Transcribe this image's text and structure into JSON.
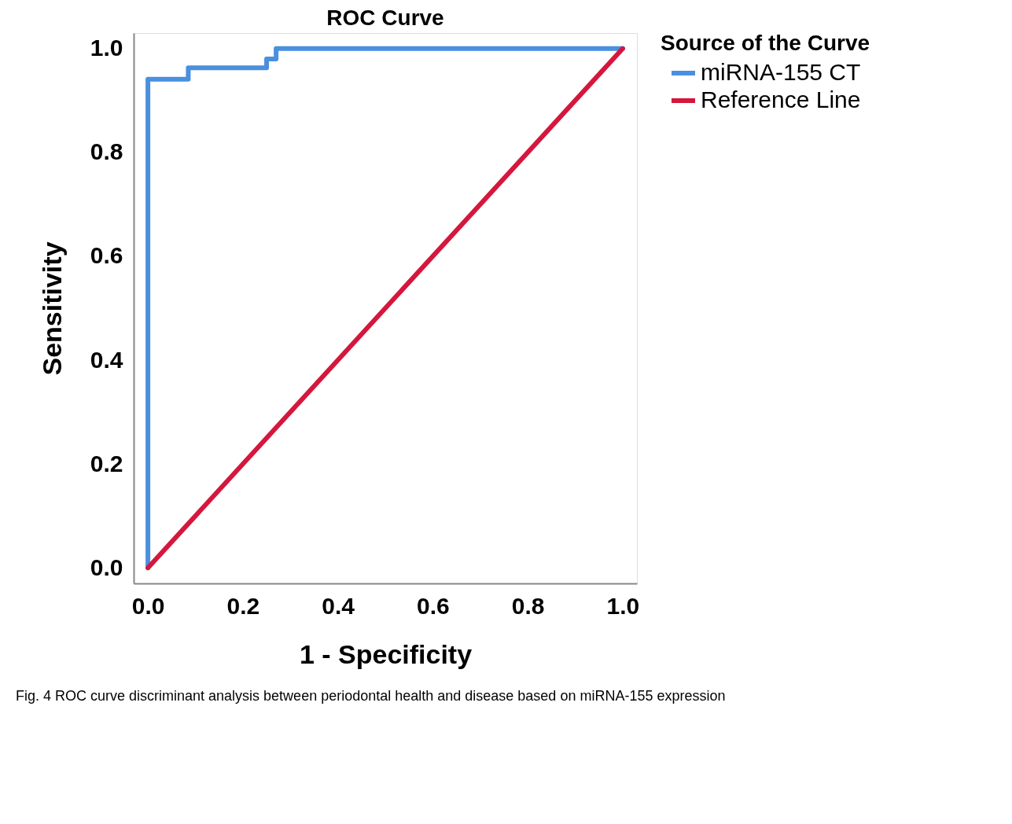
{
  "chart_data": {
    "type": "line",
    "title": "ROC Curve",
    "xlabel": "1 - Specificity",
    "ylabel": "Sensitivity",
    "legend_title": "Source of the Curve",
    "legend": "right",
    "series": [
      {
        "name": "miRNA-155 CT",
        "color": "#4a8fe0",
        "type": "step",
        "x": [
          0,
          0,
          0.085,
          0.25,
          0.27,
          1
        ],
        "values": [
          0,
          0.941,
          0.963,
          0.98,
          1,
          1
        ]
      },
      {
        "name": "Reference Line",
        "color": "#d5173d",
        "x": [
          0,
          1
        ],
        "values": [
          0,
          1
        ]
      }
    ],
    "xlim": [
      -0.03,
      1.03
    ],
    "ylim": [
      -0.03,
      1.03
    ],
    "xticks": [
      {
        "value": 0,
        "label": "0.0"
      },
      {
        "value": 0.2,
        "label": "0.2"
      },
      {
        "value": 0.4,
        "label": "0.4"
      },
      {
        "value": 0.6,
        "label": "0.6"
      },
      {
        "value": 0.8,
        "label": "0.8"
      },
      {
        "value": 1,
        "label": "1.0"
      }
    ],
    "yticks": [
      {
        "value": 0,
        "label": "0.0"
      },
      {
        "value": 0.2,
        "label": "0.2"
      },
      {
        "value": 0.4,
        "label": "0.4"
      },
      {
        "value": 0.6,
        "label": "0.6"
      },
      {
        "value": 0.8,
        "label": "0.8"
      },
      {
        "value": 1,
        "label": "1.0"
      }
    ],
    "grid": false,
    "annotations": [
      "Fig. 4  ROC curve discriminant analysis between periodontal health and disease based on miRNA-155 expression"
    ]
  }
}
